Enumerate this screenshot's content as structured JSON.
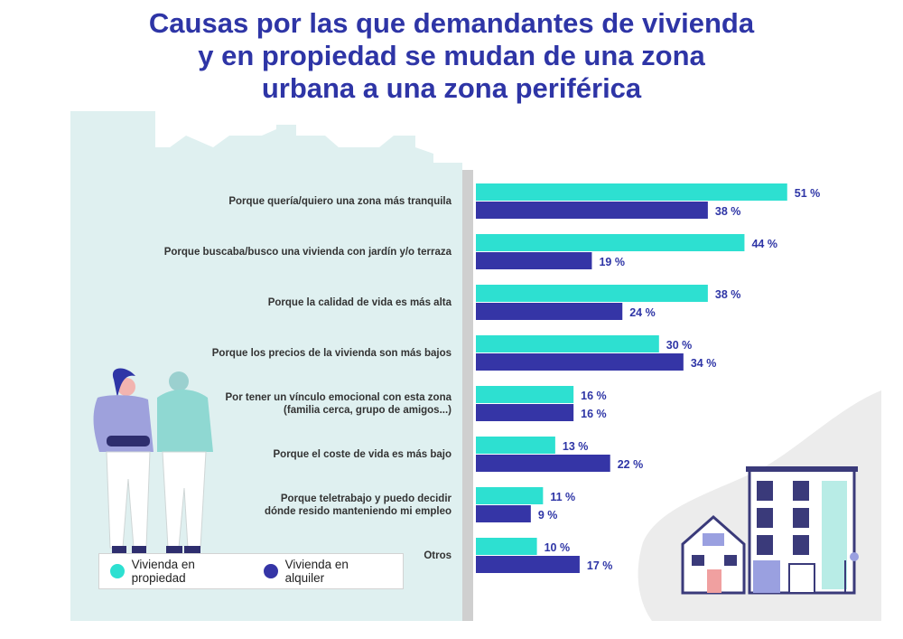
{
  "title_lines": [
    "Causas por las que demandantes de vivienda",
    "y en propiedad se mudan de una zona",
    "urbana a una zona periférica"
  ],
  "colors": {
    "propiedad": "#2de0d1",
    "alquiler": "#3535a6",
    "title": "#2e35a6",
    "panel": "#dff0f0",
    "houses_bg": "#ececec"
  },
  "legend": {
    "propiedad": "Vivienda en propiedad",
    "alquiler": "Vivienda en alquiler"
  },
  "chart_data": {
    "type": "bar",
    "orientation": "horizontal",
    "title": "Causas por las que demandantes de vivienda y en propiedad se mudan de una zona urbana a una zona periférica",
    "categories": [
      [
        "Porque quería/quiero una zona más tranquila"
      ],
      [
        "Porque buscaba/busco una vivienda con jardín y/o terraza"
      ],
      [
        "Porque la calidad de vida es más alta"
      ],
      [
        "Porque los precios de la vivienda son más bajos"
      ],
      [
        "Por tener un vínculo emocional con esta zona",
        "(familia cerca, grupo de amigos...)"
      ],
      [
        "Porque el coste de vida es más bajo"
      ],
      [
        "Porque teletrabajo y puedo decidir",
        "dónde resido manteniendo mi empleo"
      ],
      [
        "Otros"
      ]
    ],
    "series": [
      {
        "name": "Vivienda en propiedad",
        "values": [
          51,
          44,
          38,
          30,
          16,
          13,
          11,
          10
        ]
      },
      {
        "name": "Vivienda en alquiler",
        "values": [
          38,
          19,
          24,
          34,
          16,
          22,
          9,
          17
        ]
      }
    ],
    "value_suffix": " %",
    "xlim": [
      0,
      60
    ],
    "grid": false,
    "legend_position": "bottom-left"
  }
}
